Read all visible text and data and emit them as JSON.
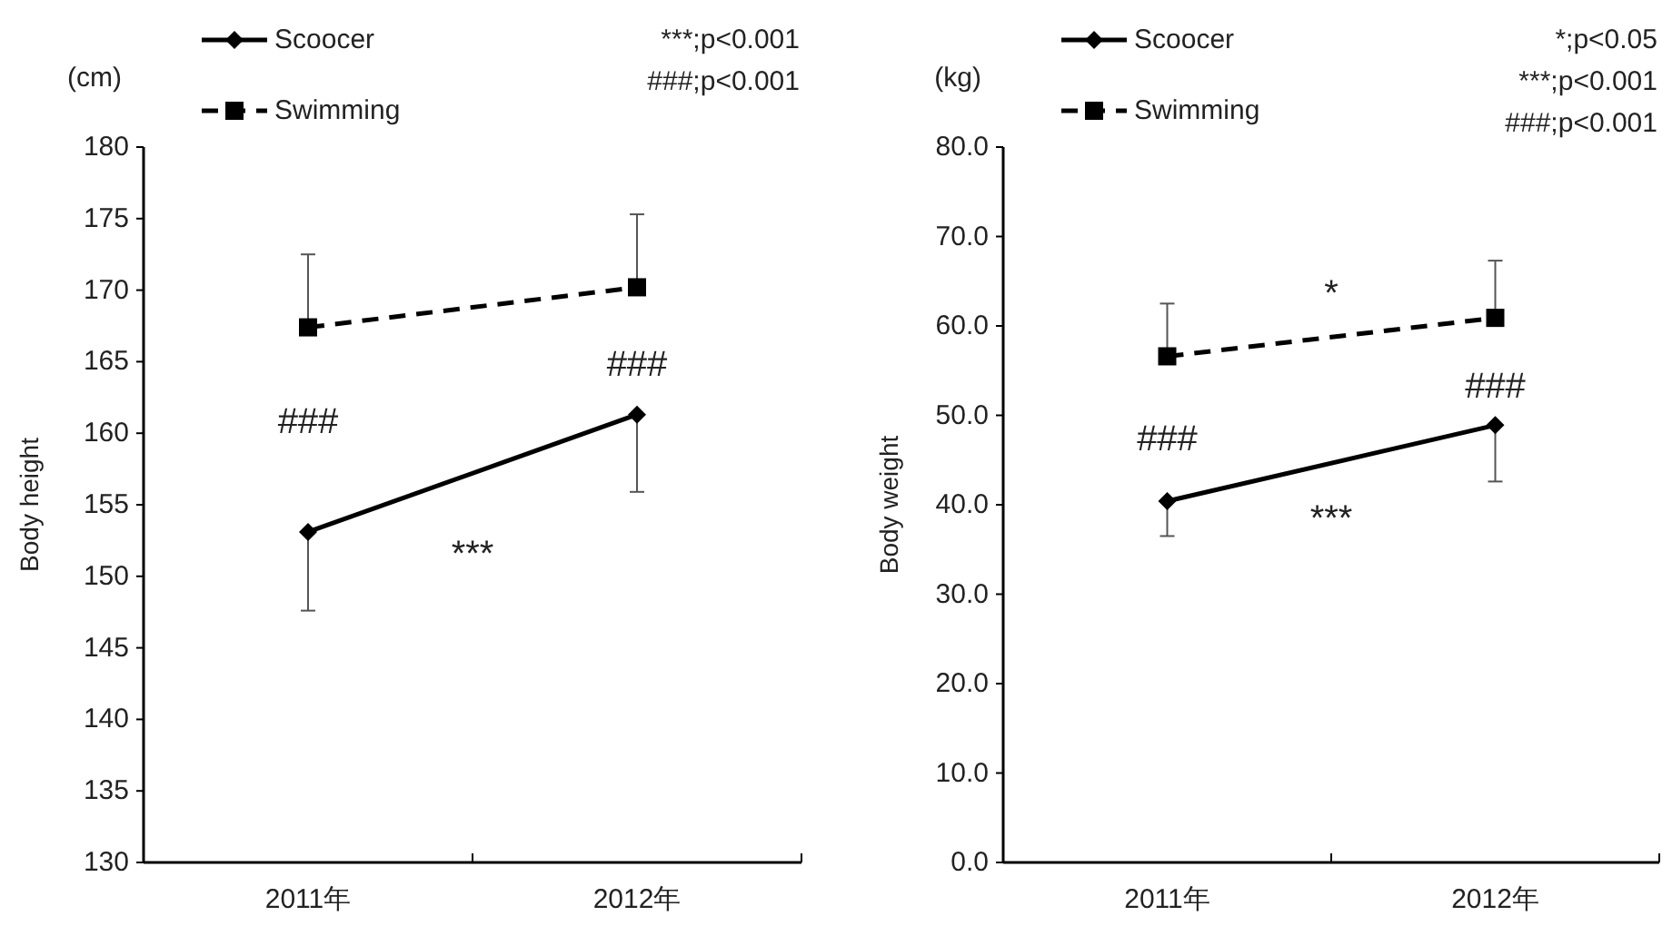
{
  "chart_data": [
    {
      "type": "line",
      "categories": [
        "2011年",
        "2012年"
      ],
      "ylabel": "Body height",
      "ylim": [
        130,
        180
      ],
      "yticks": [
        130,
        135,
        140,
        145,
        150,
        155,
        160,
        165,
        170,
        175,
        180
      ],
      "legend": "top left",
      "series": [
        {
          "name": "Scoocer",
          "color": "#000000",
          "marker": "diamond",
          "line_style": "solid",
          "values": [
            153.1,
            161.3
          ],
          "errors": [
            [
              147.6,
              153.1
            ],
            [
              155.9,
              161.3
            ]
          ]
        },
        {
          "name": "Swimming",
          "color": "#000000",
          "marker": "square",
          "line_style": "dashed",
          "values": [
            167.4,
            170.2
          ],
          "errors": [
            [
              167.4,
              172.5
            ],
            [
              170.2,
              175.3
            ]
          ]
        }
      ],
      "annotations": [
        "(cm)",
        "***;p<0.001",
        "###;p<0.001",
        "###",
        "###",
        "***"
      ]
    },
    {
      "type": "line",
      "categories": [
        "2011年",
        "2012年"
      ],
      "ylabel": "Body weight",
      "ylim": [
        0,
        80
      ],
      "yticks": [
        {
          "value": 0,
          "label": "0.0"
        },
        {
          "value": 10,
          "label": "10.0"
        },
        {
          "value": 20,
          "label": "20.0"
        },
        {
          "value": 30,
          "label": "30.0"
        },
        {
          "value": 40,
          "label": "40.0"
        },
        {
          "value": 50,
          "label": "50.0"
        },
        {
          "value": 60,
          "label": "60.0"
        },
        {
          "value": 70,
          "label": "70.0"
        },
        {
          "value": 80,
          "label": "80.0"
        }
      ],
      "legend": "top left",
      "series": [
        {
          "name": "Scoocer",
          "color": "#000000",
          "marker": "diamond",
          "line_style": "solid",
          "values": [
            40.4,
            48.9
          ],
          "errors": [
            [
              36.5,
              40.4
            ],
            [
              42.6,
              48.9
            ]
          ]
        },
        {
          "name": "Swimming",
          "color": "#000000",
          "marker": "square",
          "line_style": "dashed",
          "values": [
            56.6,
            60.9
          ],
          "errors": [
            [
              56.6,
              62.5
            ],
            [
              60.9,
              67.3
            ]
          ]
        }
      ],
      "annotations": [
        "(kg)",
        "*;p<0.05",
        "***;p<0.001",
        "###;p<0.001",
        "*",
        "###",
        "###",
        "***"
      ]
    }
  ]
}
